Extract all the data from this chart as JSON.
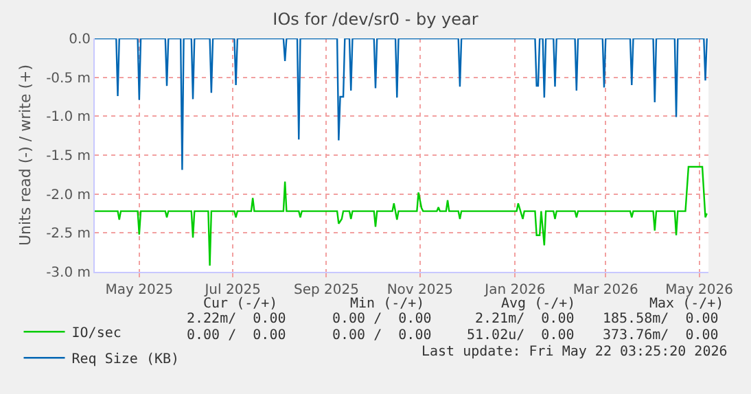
{
  "chart_data": {
    "type": "line",
    "title": "IOs for /dev/sr0 - by year",
    "ylabel": "Units read (-) / write (+)",
    "xlim": [
      "2025-04-17",
      "2026-05-22"
    ],
    "xticks": [
      {
        "value": "2025-05-16",
        "label": "May 2025"
      },
      {
        "value": "2025-07-16",
        "label": "Jul 2025"
      },
      {
        "value": "2025-09-15",
        "label": "Sep 2025"
      },
      {
        "value": "2025-11-15",
        "label": "Nov 2025"
      },
      {
        "value": "2026-01-16",
        "label": "Jan 2026"
      },
      {
        "value": "2026-03-16",
        "label": "Mar 2026"
      },
      {
        "value": "2026-05-16",
        "label": "May 2026"
      }
    ],
    "ylim": [
      -3.0,
      0.0
    ],
    "yticks": [
      {
        "value": -3.0,
        "label": "-3.0 m"
      },
      {
        "value": -2.5,
        "label": "-2.5 m"
      },
      {
        "value": -2.0,
        "label": "-2.0 m"
      },
      {
        "value": -1.5,
        "label": "-1.5 m"
      },
      {
        "value": -1.0,
        "label": "-1.0 m"
      },
      {
        "value": -0.5,
        "label": "-0.5 m"
      },
      {
        "value": 0.0,
        "label": "0.0"
      }
    ],
    "grid": true,
    "legend": "bottom",
    "marker": "none",
    "line_style": "solid",
    "series": [
      {
        "name": "IO/sec",
        "color": "#00cc00",
        "x": [
          "2025-04-17",
          "2025-05-02",
          "2025-05-03",
          "2025-05-04",
          "2025-05-15",
          "2025-05-16",
          "2025-05-17",
          "2025-06-02",
          "2025-06-03",
          "2025-06-04",
          "2025-06-19",
          "2025-06-20",
          "2025-06-21",
          "2025-06-30",
          "2025-07-01",
          "2025-07-02",
          "2025-07-17",
          "2025-07-18",
          "2025-07-19",
          "2025-07-28",
          "2025-07-29",
          "2025-07-30",
          "2025-08-18",
          "2025-08-19",
          "2025-08-20",
          "2025-08-28",
          "2025-08-29",
          "2025-08-30",
          "2025-09-22",
          "2025-09-23",
          "2025-09-25",
          "2025-09-26",
          "2025-09-30",
          "2025-10-01",
          "2025-10-02",
          "2025-10-16",
          "2025-10-17",
          "2025-10-18",
          "2025-10-28",
          "2025-10-29",
          "2025-10-31",
          "2025-11-01",
          "2025-11-13",
          "2025-11-14",
          "2025-11-16",
          "2025-11-17",
          "2025-11-26",
          "2025-11-27",
          "2025-11-28",
          "2025-12-02",
          "2025-12-03",
          "2025-12-04",
          "2025-12-10",
          "2025-12-11",
          "2025-12-12",
          "2026-01-17",
          "2026-01-18",
          "2026-01-21",
          "2026-01-22",
          "2026-01-29",
          "2026-01-30",
          "2026-02-01",
          "2026-02-02",
          "2026-02-04",
          "2026-02-05",
          "2026-02-10",
          "2026-02-11",
          "2026-02-12",
          "2026-02-24",
          "2026-02-25",
          "2026-02-26",
          "2026-04-01",
          "2026-04-02",
          "2026-04-03",
          "2026-04-16",
          "2026-04-17",
          "2026-04-18",
          "2026-04-30",
          "2026-05-01",
          "2026-05-02",
          "2026-05-07",
          "2026-05-09",
          "2026-05-18",
          "2026-05-20",
          "2026-05-21"
        ],
        "values": [
          -2.22,
          -2.22,
          -2.33,
          -2.22,
          -2.22,
          -2.52,
          -2.22,
          -2.22,
          -2.3,
          -2.22,
          -2.22,
          -2.56,
          -2.22,
          -2.22,
          -2.92,
          -2.22,
          -2.22,
          -2.3,
          -2.22,
          -2.22,
          -2.05,
          -2.22,
          -2.22,
          -1.84,
          -2.22,
          -2.22,
          -2.3,
          -2.22,
          -2.22,
          -2.38,
          -2.32,
          -2.22,
          -2.22,
          -2.32,
          -2.22,
          -2.22,
          -2.42,
          -2.22,
          -2.22,
          -2.12,
          -2.33,
          -2.22,
          -2.22,
          -1.98,
          -2.18,
          -2.22,
          -2.22,
          -2.17,
          -2.22,
          -2.22,
          -2.08,
          -2.22,
          -2.22,
          -2.32,
          -2.22,
          -2.22,
          -2.12,
          -2.32,
          -2.22,
          -2.22,
          -2.53,
          -2.53,
          -2.22,
          -2.66,
          -2.22,
          -2.22,
          -2.32,
          -2.22,
          -2.22,
          -2.3,
          -2.22,
          -2.22,
          -2.3,
          -2.22,
          -2.22,
          -2.47,
          -2.22,
          -2.22,
          -2.53,
          -2.22,
          -2.22,
          -1.65,
          -1.65,
          -2.3,
          -2.25
        ]
      },
      {
        "name": "Req Size (KB)",
        "color": "#0066b3",
        "x": [
          "2025-04-17",
          "2025-05-01",
          "2025-05-02",
          "2025-05-03",
          "2025-05-15",
          "2025-05-16",
          "2025-05-17",
          "2025-06-02",
          "2025-06-03",
          "2025-06-04",
          "2025-06-12",
          "2025-06-13",
          "2025-06-14",
          "2025-06-19",
          "2025-06-20",
          "2025-06-21",
          "2025-07-01",
          "2025-07-02",
          "2025-07-03",
          "2025-07-17",
          "2025-07-18",
          "2025-07-19",
          "2025-08-18",
          "2025-08-19",
          "2025-08-20",
          "2025-08-27",
          "2025-08-28",
          "2025-08-29",
          "2025-09-22",
          "2025-09-23",
          "2025-09-24",
          "2025-09-26",
          "2025-09-27",
          "2025-09-30",
          "2025-10-01",
          "2025-10-02",
          "2025-10-16",
          "2025-10-17",
          "2025-10-18",
          "2025-10-30",
          "2025-10-31",
          "2025-11-01",
          "2025-12-10",
          "2025-12-11",
          "2025-12-12",
          "2026-01-29",
          "2026-01-30",
          "2026-01-31",
          "2026-02-01",
          "2026-02-03",
          "2026-02-04",
          "2026-02-05",
          "2026-02-10",
          "2026-02-11",
          "2026-02-12",
          "2026-02-24",
          "2026-02-25",
          "2026-02-26",
          "2026-03-14",
          "2026-03-15",
          "2026-03-16",
          "2026-04-01",
          "2026-04-02",
          "2026-04-03",
          "2026-04-16",
          "2026-04-17",
          "2026-04-18",
          "2026-04-30",
          "2026-05-01",
          "2026-05-02",
          "2026-05-19",
          "2026-05-20",
          "2026-05-21"
        ],
        "values": [
          0,
          0,
          -0.74,
          0,
          0,
          -0.79,
          0,
          0,
          -0.61,
          0,
          0,
          -1.69,
          0,
          0,
          -0.78,
          0,
          0,
          -0.7,
          0,
          0,
          -0.6,
          0,
          0,
          -0.29,
          0,
          0,
          -1.3,
          0,
          0,
          -1.31,
          -0.75,
          -0.75,
          0,
          0,
          -0.67,
          0,
          0,
          -0.64,
          0,
          0,
          -0.76,
          0,
          0,
          -0.62,
          0,
          0,
          -0.61,
          -0.61,
          0,
          0,
          -0.76,
          0,
          0,
          -0.62,
          0,
          0,
          -0.67,
          0,
          0,
          -0.63,
          0,
          0,
          -0.6,
          0,
          0,
          -0.82,
          0,
          0,
          -1.01,
          0,
          0,
          -0.54,
          0
        ]
      }
    ],
    "annotations": [
      "Cur (-/+)",
      "Min (-/+)",
      "Avg (-/+)",
      "Max (-/+)",
      "2.22m/  0.00",
      "0.00 /  0.00",
      "2.21m/  0.00",
      "185.58m/  0.00",
      "0.00 /  0.00",
      "0.00 /  0.00",
      "51.02u/  0.00",
      "373.76m/  0.00",
      "Last update: Fri May 22 03:25:20 2026"
    ]
  }
}
